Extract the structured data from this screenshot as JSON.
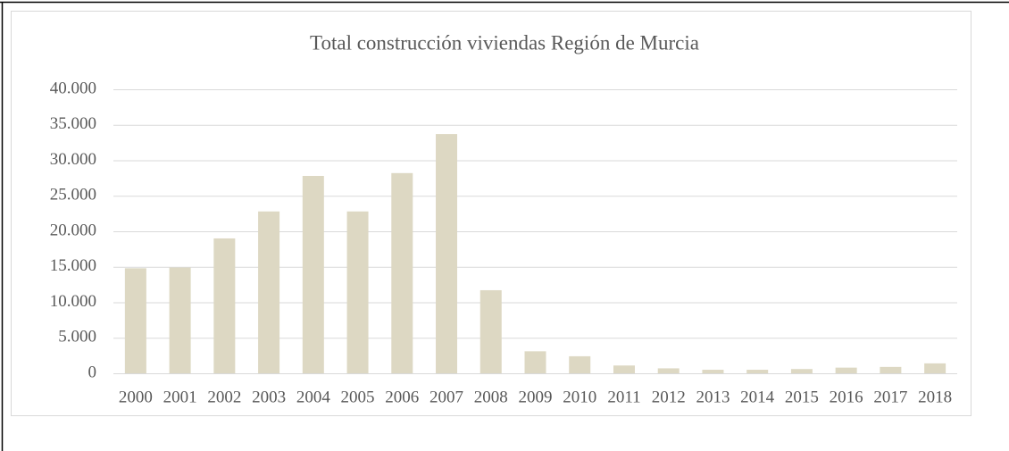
{
  "chart_data": {
    "type": "bar",
    "title": "Total construcción viviendas Región de Murcia",
    "categories": [
      "2000",
      "2001",
      "2002",
      "2003",
      "2004",
      "2005",
      "2006",
      "2007",
      "2008",
      "2009",
      "2010",
      "2011",
      "2012",
      "2013",
      "2014",
      "2015",
      "2016",
      "2017",
      "2018"
    ],
    "values": [
      14800,
      14900,
      19000,
      22800,
      27800,
      22800,
      28200,
      33700,
      11700,
      3100,
      2400,
      1100,
      700,
      500,
      500,
      600,
      800,
      900,
      1400
    ],
    "color": "#ddd8c3",
    "ylim": [
      0,
      40000
    ],
    "yticks": [
      0,
      {
        "value": 5000,
        "label": "5.000"
      },
      {
        "value": 10000,
        "label": "10.000"
      },
      {
        "value": 15000,
        "label": "15.000"
      },
      {
        "value": 20000,
        "label": "20.000"
      },
      {
        "value": 25000,
        "label": "25.000"
      },
      {
        "value": 30000,
        "label": "30.000"
      },
      {
        "value": 35000,
        "label": "35.000"
      },
      {
        "value": 40000,
        "label": "40.000"
      }
    ],
    "grid": true
  }
}
